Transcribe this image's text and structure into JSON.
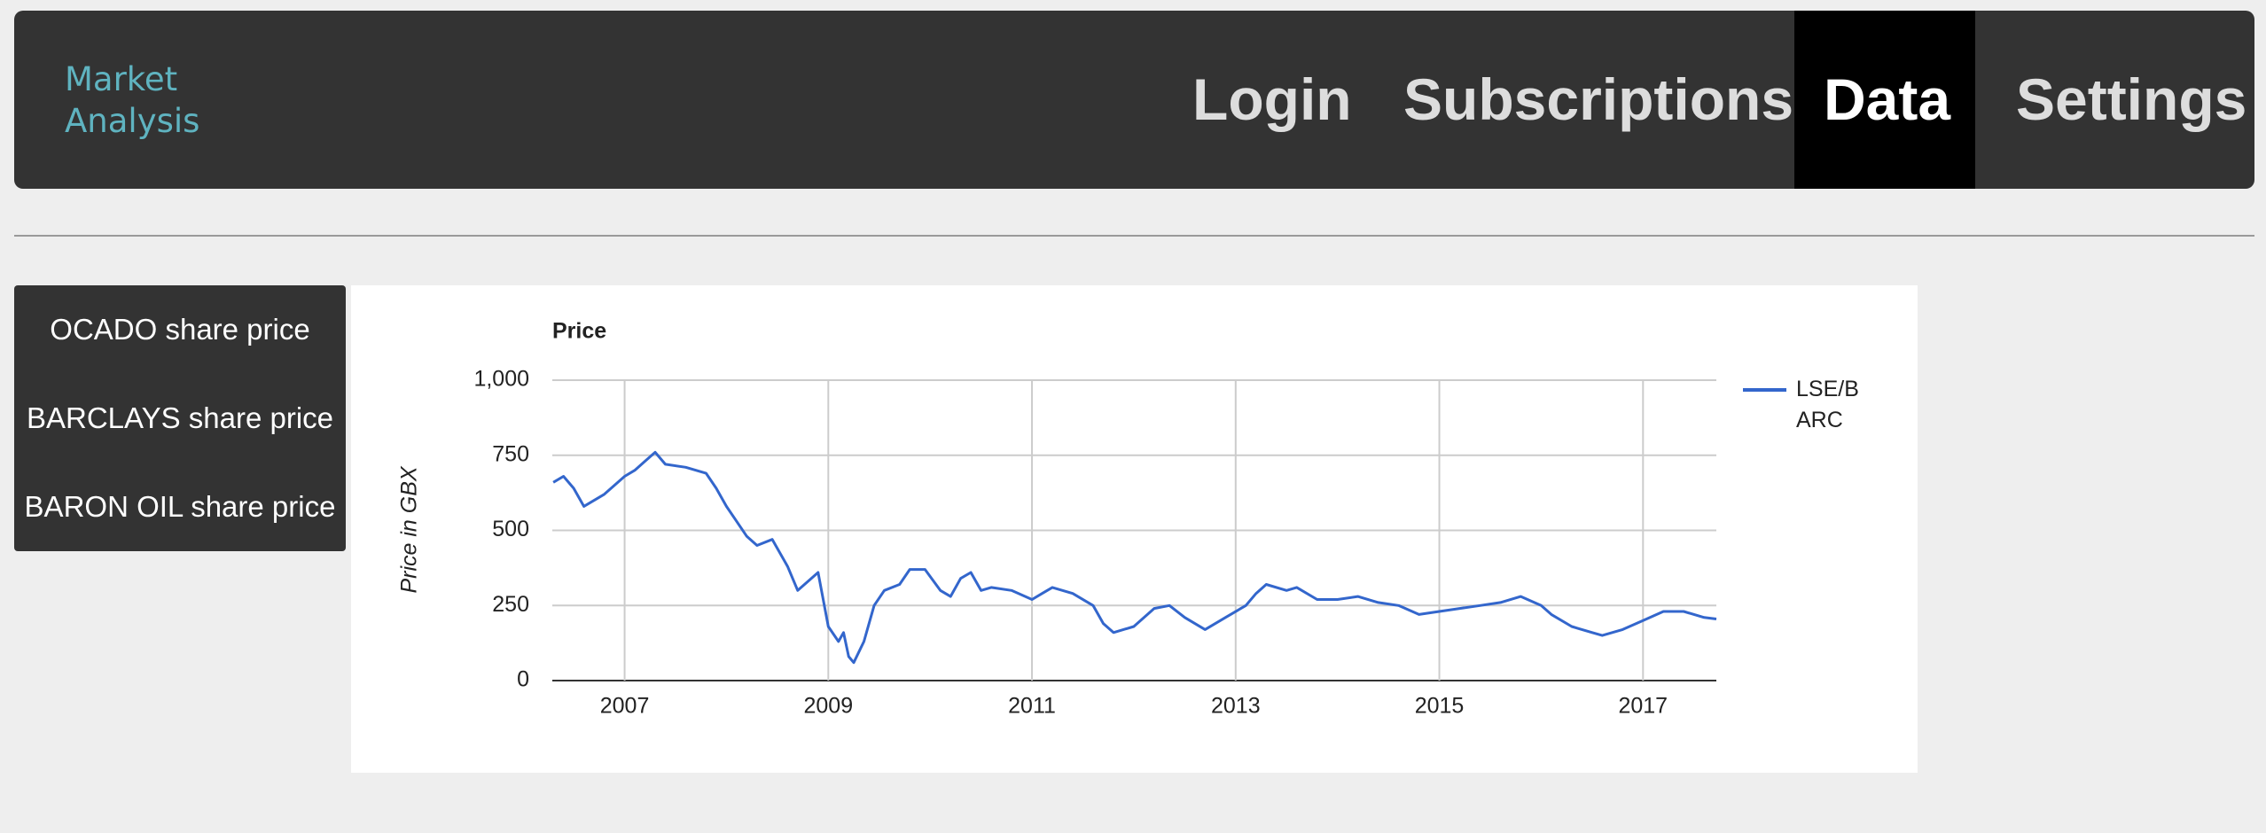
{
  "nav": {
    "brand": "Market Analysis",
    "items": [
      "Login",
      "Subscriptions",
      "Data",
      "Settings"
    ],
    "active": 2
  },
  "sidebar": {
    "items": [
      "OCADO share price",
      "BARCLAYS share price",
      "BARON OIL share price"
    ]
  },
  "chart_data": {
    "type": "line",
    "title": "Price",
    "y_label": "Price in GBX",
    "xlim": [
      2006.29,
      2017.72
    ],
    "xticks": [
      2007,
      2009,
      2011,
      2013,
      2015,
      2017
    ],
    "ylim": [
      0,
      1000
    ],
    "yticks": [
      0,
      250,
      500,
      750,
      {
        "value": 1000,
        "label": "1,000"
      }
    ],
    "grid": true,
    "legend": "right",
    "series": [
      {
        "name": "LSE/BARC",
        "color": "#3366cc",
        "x": [
          2006.3,
          2006.4,
          2006.5,
          2006.6,
          2006.8,
          2007.0,
          2007.1,
          2007.2,
          2007.3,
          2007.4,
          2007.6,
          2007.8,
          2007.9,
          2008.0,
          2008.1,
          2008.2,
          2008.3,
          2008.45,
          2008.6,
          2008.7,
          2008.8,
          2008.9,
          2009.0,
          2009.1,
          2009.15,
          2009.2,
          2009.25,
          2009.35,
          2009.45,
          2009.55,
          2009.7,
          2009.8,
          2009.95,
          2010.1,
          2010.2,
          2010.3,
          2010.4,
          2010.5,
          2010.6,
          2010.8,
          2011.0,
          2011.1,
          2011.2,
          2011.4,
          2011.6,
          2011.7,
          2011.8,
          2012.0,
          2012.2,
          2012.35,
          2012.5,
          2012.7,
          2012.9,
          2013.1,
          2013.2,
          2013.3,
          2013.5,
          2013.6,
          2013.8,
          2014.0,
          2014.2,
          2014.4,
          2014.6,
          2014.8,
          2015.0,
          2015.2,
          2015.4,
          2015.6,
          2015.8,
          2016.0,
          2016.1,
          2016.3,
          2016.5,
          2016.6,
          2016.8,
          2017.0,
          2017.2,
          2017.4,
          2017.6,
          2017.72
        ],
        "values": [
          660,
          680,
          640,
          580,
          620,
          680,
          700,
          730,
          760,
          720,
          710,
          690,
          640,
          580,
          530,
          480,
          450,
          470,
          380,
          300,
          330,
          360,
          180,
          130,
          160,
          80,
          60,
          130,
          250,
          300,
          320,
          370,
          370,
          300,
          280,
          340,
          360,
          300,
          310,
          300,
          270,
          290,
          310,
          290,
          250,
          190,
          160,
          180,
          240,
          250,
          210,
          170,
          210,
          250,
          290,
          320,
          300,
          310,
          270,
          270,
          280,
          260,
          250,
          220,
          230,
          240,
          250,
          260,
          280,
          250,
          220,
          180,
          160,
          150,
          170,
          200,
          230,
          230,
          210,
          205
        ]
      }
    ]
  }
}
